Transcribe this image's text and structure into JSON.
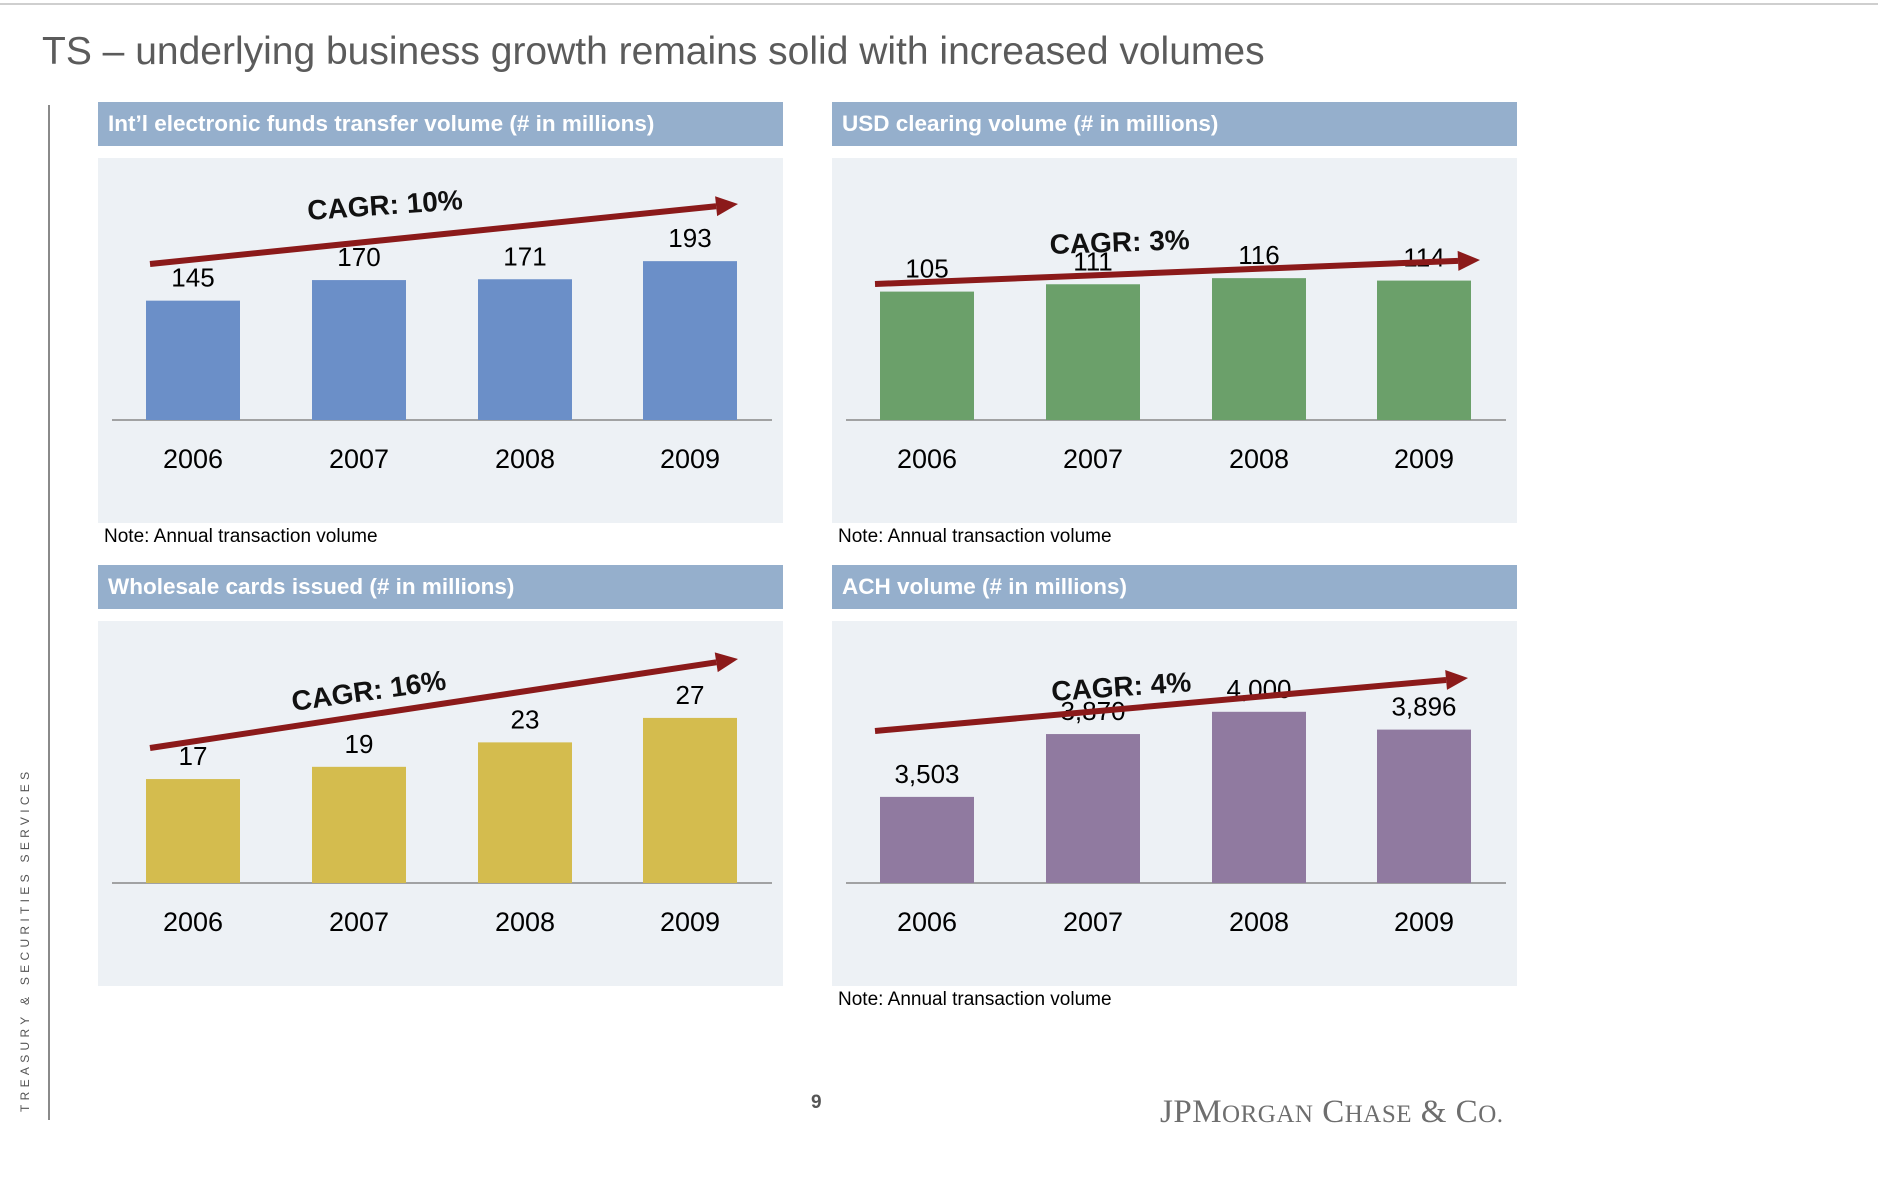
{
  "title": "TS – underlying business growth remains solid with increased volumes",
  "side_label": "TREASURY & SECURITIES SERVICES",
  "page_number": "9",
  "logo": {
    "text": "JPMorgan Chase & Co."
  },
  "chart_data": [
    {
      "type": "bar",
      "title": "Int’l electronic funds transfer volume (# in millions)",
      "categories": [
        "2006",
        "2007",
        "2008",
        "2009"
      ],
      "values": [
        145,
        170,
        171,
        193
      ],
      "value_labels": [
        "145",
        "170",
        "171",
        "193"
      ],
      "color": "#6b8fc8",
      "annotation": "CAGR: 10%",
      "note": "Note:  Annual transaction volume",
      "ylim": [
        0,
        260
      ]
    },
    {
      "type": "bar",
      "title": "USD clearing volume (# in millions)",
      "categories": [
        "2006",
        "2007",
        "2008",
        "2009"
      ],
      "values": [
        105,
        111,
        116,
        114
      ],
      "value_labels": [
        "105",
        "111",
        "116",
        "114"
      ],
      "color": "#6ba06a",
      "annotation": "CAGR: 3%",
      "note": "Note:  Annual transaction volume",
      "ylim": [
        0,
        175
      ]
    },
    {
      "type": "bar",
      "title": "Wholesale cards issued (# in millions)",
      "categories": [
        "2006",
        "2007",
        "2008",
        "2009"
      ],
      "values": [
        17,
        19,
        23,
        27
      ],
      "value_labels": [
        "17",
        "19",
        "23",
        "27"
      ],
      "color": "#d4bc4e",
      "annotation": "CAGR: 16%",
      "note": "",
      "ylim": [
        0,
        35
      ]
    },
    {
      "type": "bar",
      "title": "ACH volume (# in millions)",
      "categories": [
        "2006",
        "2007",
        "2008",
        "2009"
      ],
      "values": [
        3503,
        3870,
        4000,
        3896
      ],
      "value_labels": [
        "3,503",
        "3,870",
        "4,000",
        "3,896"
      ],
      "color": "#907aa0",
      "annotation": "CAGR: 4%",
      "note": "Note:  Annual transaction volume",
      "ylim": [
        3000,
        4250
      ]
    }
  ]
}
